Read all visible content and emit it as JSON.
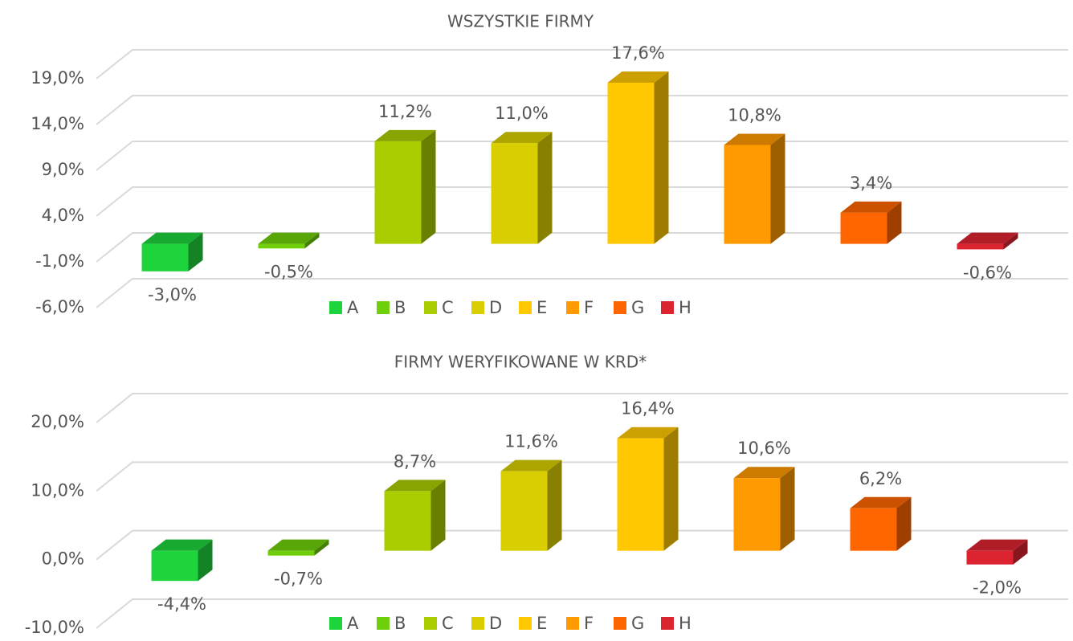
{
  "chart_data": [
    {
      "type": "bar",
      "title": "WSZYSTKIE FIRMY",
      "categories": [
        "A",
        "B",
        "C",
        "D",
        "E",
        "F",
        "G",
        "H"
      ],
      "colors": [
        "#1ed43c",
        "#6fcf0a",
        "#aacd00",
        "#d9cf00",
        "#ffc800",
        "#ff9a00",
        "#ff6600",
        "#dc2430"
      ],
      "values": [
        -3.0,
        -0.5,
        11.2,
        11.0,
        17.6,
        10.8,
        3.4,
        -0.6
      ],
      "value_labels": [
        "-3,0%",
        "-0,5%",
        "11,2%",
        "11,0%",
        "17,6%",
        "10,8%",
        "3,4%",
        "-0,6%"
      ],
      "ylim": [
        -6,
        19
      ],
      "yticks": [
        {
          "value": -6,
          "label": "-6,0%"
        },
        {
          "value": -1,
          "label": "-1,0%"
        },
        {
          "value": 4,
          "label": "4,0%"
        },
        {
          "value": 9,
          "label": "9,0%"
        },
        {
          "value": 14,
          "label": "14,0%"
        },
        {
          "value": 19,
          "label": "19,0%"
        }
      ],
      "grid": true
    },
    {
      "type": "bar",
      "title": "FIRMY WERYFIKOWANE W KRD*",
      "categories": [
        "A",
        "B",
        "C",
        "D",
        "E",
        "F",
        "G",
        "H"
      ],
      "colors": [
        "#1ed43c",
        "#6fcf0a",
        "#aacd00",
        "#d9cf00",
        "#ffc800",
        "#ff9a00",
        "#ff6600",
        "#dc2430"
      ],
      "values": [
        -4.4,
        -0.7,
        8.7,
        11.6,
        16.4,
        10.6,
        6.2,
        -2.0
      ],
      "value_labels": [
        "-4,4%",
        "-0,7%",
        "8,7%",
        "11,6%",
        "16,4%",
        "10,6%",
        "6,2%",
        "-2,0%"
      ],
      "ylim": [
        -10,
        20
      ],
      "yticks": [
        {
          "value": -10,
          "label": "-10,0%"
        },
        {
          "value": 0,
          "label": "0,0%"
        },
        {
          "value": 10,
          "label": "10,0%"
        },
        {
          "value": 20,
          "label": "20,0%"
        }
      ],
      "grid": true
    }
  ]
}
